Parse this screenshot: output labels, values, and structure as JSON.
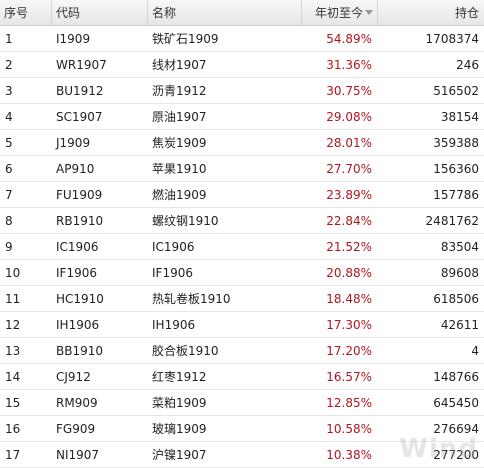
{
  "header": {
    "idx": "序号",
    "code": "代码",
    "name": "名称",
    "ytd": "年初至今",
    "holding": "持仓",
    "sort_icon": "sort-down-triangle"
  },
  "rows": [
    {
      "idx": "1",
      "code": "I1909",
      "name": "铁矿石1909",
      "ytd": "54.89%",
      "holding": "1708374"
    },
    {
      "idx": "2",
      "code": "WR1907",
      "name": "线材1907",
      "ytd": "31.36%",
      "holding": "246"
    },
    {
      "idx": "3",
      "code": "BU1912",
      "name": "沥青1912",
      "ytd": "30.75%",
      "holding": "516502"
    },
    {
      "idx": "4",
      "code": "SC1907",
      "name": "原油1907",
      "ytd": "29.08%",
      "holding": "38154"
    },
    {
      "idx": "5",
      "code": "J1909",
      "name": "焦炭1909",
      "ytd": "28.01%",
      "holding": "359388"
    },
    {
      "idx": "6",
      "code": "AP910",
      "name": "苹果1910",
      "ytd": "27.70%",
      "holding": "156360"
    },
    {
      "idx": "7",
      "code": "FU1909",
      "name": "燃油1909",
      "ytd": "23.89%",
      "holding": "157786"
    },
    {
      "idx": "8",
      "code": "RB1910",
      "name": "螺纹钢1910",
      "ytd": "22.84%",
      "holding": "2481762"
    },
    {
      "idx": "9",
      "code": "IC1906",
      "name": "IC1906",
      "ytd": "21.52%",
      "holding": "83504"
    },
    {
      "idx": "10",
      "code": "IF1906",
      "name": "IF1906",
      "ytd": "20.88%",
      "holding": "89608"
    },
    {
      "idx": "11",
      "code": "HC1910",
      "name": "热轧卷板1910",
      "ytd": "18.48%",
      "holding": "618506"
    },
    {
      "idx": "12",
      "code": "IH1906",
      "name": "IH1906",
      "ytd": "17.30%",
      "holding": "42611"
    },
    {
      "idx": "13",
      "code": "BB1910",
      "name": "胶合板1910",
      "ytd": "17.20%",
      "holding": "4"
    },
    {
      "idx": "14",
      "code": "CJ912",
      "name": "红枣1912",
      "ytd": "16.57%",
      "holding": "148766"
    },
    {
      "idx": "15",
      "code": "RM909",
      "name": "菜粕1909",
      "ytd": "12.85%",
      "holding": "645450"
    },
    {
      "idx": "16",
      "code": "FG909",
      "name": "玻璃1909",
      "ytd": "10.58%",
      "holding": "276694"
    },
    {
      "idx": "17",
      "code": "NI1907",
      "name": "沪镍1907",
      "ytd": "10.38%",
      "holding": "277200"
    }
  ],
  "watermark": "Wind",
  "colors": {
    "up": "#b0171f",
    "header_bg": "#ececec",
    "row_border": "#e6e6e6"
  }
}
